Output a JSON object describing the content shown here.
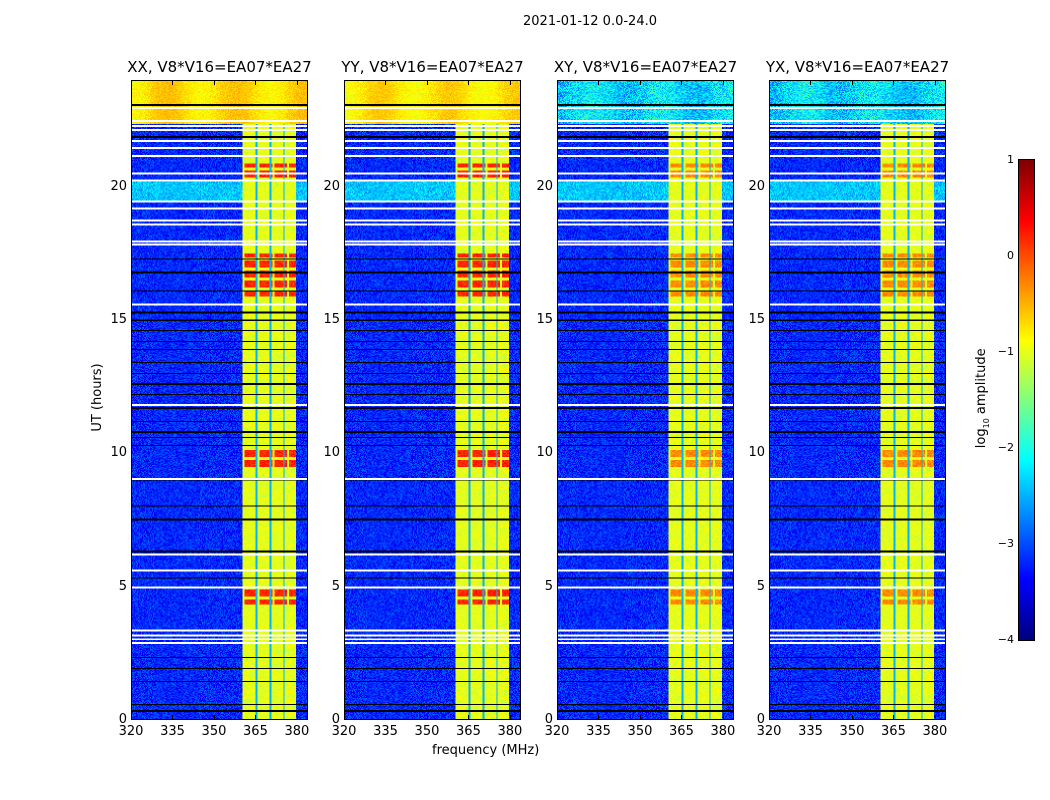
{
  "chart_data": {
    "type": "heatmap",
    "title": "2021-01-12 0.0-24.0",
    "xlabel": "frequency (MHz)",
    "ylabel": "UT (hours)",
    "xlim": [
      320,
      384
    ],
    "ylim": [
      0,
      24
    ],
    "xticks": [
      "320",
      "335",
      "350",
      "365",
      "380"
    ],
    "xtick_values": [
      320,
      335,
      350,
      365,
      380
    ],
    "yticks": [
      "0",
      "5",
      "10",
      "15",
      "20"
    ],
    "ytick_values": [
      0,
      5,
      10,
      15,
      20
    ],
    "panels": [
      {
        "title": "XX, V8*V16=EA07*EA27",
        "pol": "XX",
        "top_band_level": -0.7
      },
      {
        "title": "YY, V8*V16=EA07*EA27",
        "pol": "YY",
        "top_band_level": -0.75
      },
      {
        "title": "XY, V8*V16=EA07*EA27",
        "pol": "XY",
        "top_band_level": -2.3
      },
      {
        "title": "YX, V8*V16=EA07*EA27",
        "pol": "YX",
        "top_band_level": -2.3
      }
    ],
    "features": {
      "background_level": -3.2,
      "rfi_band_mhz": [
        360.5,
        380
      ],
      "rfi_band_level": -1.0,
      "rfi_gap_channels_mhz": [
        365.5,
        370.5,
        375.5
      ],
      "strong_rfi_hours": [
        [
          4.3,
          5.0
        ],
        [
          9.4,
          10.2
        ],
        [
          15.9,
          17.5
        ],
        [
          20.3,
          20.9
        ]
      ],
      "top_band_hours": [
        22.4,
        24
      ],
      "bright_row_hours": [
        [
          19.5,
          20.2
        ]
      ],
      "flagged_rows_hours": [
        2.85,
        3.0,
        3.15,
        3.35,
        4.95,
        5.6,
        6.2,
        9.05,
        11.8,
        15.6,
        17.85,
        17.95,
        18.6,
        18.75,
        19.2,
        19.45,
        20.25,
        20.5,
        21.2,
        21.5,
        21.75,
        22.15,
        22.3,
        22.5,
        23.0
      ],
      "dropout_row_hours": [
        0.3,
        0.55,
        1.4,
        1.9,
        2.3,
        5.3,
        6.3,
        7.5,
        8.0,
        9.0,
        10.3,
        10.6,
        10.8,
        11.2,
        11.7,
        12.2,
        12.6,
        13.0,
        13.4,
        13.9,
        14.2,
        14.6,
        15.0,
        15.3,
        16.1,
        16.8,
        17.3,
        21.9,
        23.1
      ]
    },
    "colorbar": {
      "label": "log10 amplitude",
      "label_main": "log",
      "label_sub": "10",
      "label_rest": " amplitude",
      "range": [
        -4,
        1
      ],
      "ticks": [
        "1",
        "0",
        "−1",
        "−2",
        "−3",
        "−4"
      ],
      "tick_values": [
        1,
        0,
        -1,
        -2,
        -3,
        -4
      ],
      "colormap": "jet"
    }
  }
}
